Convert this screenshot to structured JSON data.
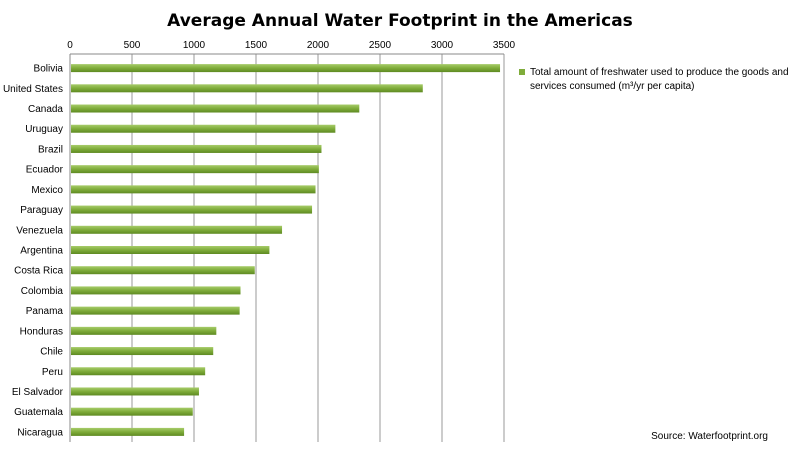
{
  "chart_data": {
    "type": "bar",
    "orientation": "horizontal",
    "title": "Average Annual Water Footprint in the Americas",
    "categories": [
      "Bolivia",
      "United States",
      "Canada",
      "Uruguay",
      "Brazil",
      "Ecuador",
      "Mexico",
      "Paraguay",
      "Venezuela",
      "Argentina",
      "Costa Rica",
      "Colombia",
      "Panama",
      "Honduras",
      "Chile",
      "Peru",
      "El Salvador",
      "Guatemala",
      "Nicaragua"
    ],
    "series": [
      {
        "name": "Total amount of freshwater used to produce the goods and services consumed (m³/yr per capita)",
        "legend_lines": [
          "Total amount of freshwater used to produce the goods and",
          "services consumed (m³/yr per capita)"
        ],
        "color": "#7fac3a",
        "values": [
          3468,
          2845,
          2333,
          2140,
          2028,
          2007,
          1980,
          1952,
          1710,
          1608,
          1490,
          1375,
          1368,
          1180,
          1155,
          1090,
          1040,
          990,
          920
        ]
      }
    ],
    "xlim": [
      0,
      3500
    ],
    "xticks": [
      0,
      500,
      1000,
      1500,
      2000,
      2500,
      3000,
      3500
    ],
    "grid": true,
    "axis_position": "top",
    "legend_position": "right",
    "source": "Source: Waterfootprint.org"
  }
}
